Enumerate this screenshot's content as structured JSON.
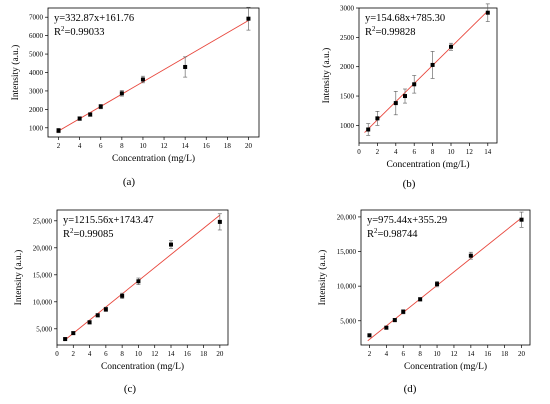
{
  "chart_data": [
    {
      "type": "scatter",
      "panel_label": "(a)",
      "equation": "y=332.87x+161.76",
      "r2_prefix": "R",
      "r2_sup": "2",
      "r2_value": "=0.99033",
      "xlabel": "Concentration (mg/L)",
      "ylabel": "Intensity (a.u.)",
      "xlim": [
        1,
        21
      ],
      "ylim": [
        500,
        7500
      ],
      "xticks": [
        2,
        4,
        6,
        8,
        10,
        12,
        14,
        16,
        18,
        20
      ],
      "yticks": [
        1000,
        2000,
        3000,
        4000,
        5000,
        6000,
        7000
      ],
      "ytick_labels": [
        "1000",
        "2000",
        "3000",
        "4000",
        "5000",
        "6000",
        "7000"
      ],
      "fit": {
        "slope": 332.87,
        "intercept": 161.76
      },
      "points": [
        {
          "x": 2,
          "y": 850,
          "err": 120
        },
        {
          "x": 4,
          "y": 1500,
          "err": 100
        },
        {
          "x": 5,
          "y": 1720,
          "err": 100
        },
        {
          "x": 6,
          "y": 2150,
          "err": 120
        },
        {
          "x": 8,
          "y": 2870,
          "err": 150
        },
        {
          "x": 10,
          "y": 3620,
          "err": 180
        },
        {
          "x": 14,
          "y": 4300,
          "err": 550
        },
        {
          "x": 20,
          "y": 6920,
          "err": 620
        }
      ]
    },
    {
      "type": "scatter",
      "panel_label": "(b)",
      "equation": "y=154.68x+785.30",
      "r2_prefix": "R",
      "r2_sup": "2",
      "r2_value": "=0.99828",
      "xlabel": "Concentration (mg/L)",
      "ylabel": "Intensity (a.u.)",
      "xlim": [
        0,
        15
      ],
      "ylim": [
        700,
        3000
      ],
      "xticks": [
        0,
        2,
        4,
        6,
        8,
        10,
        12,
        14
      ],
      "yticks": [
        1000,
        1500,
        2000,
        2500,
        3000
      ],
      "ytick_labels": [
        "1000",
        "1500",
        "2000",
        "2500",
        "3000"
      ],
      "fit": {
        "slope": 154.68,
        "intercept": 785.3
      },
      "points": [
        {
          "x": 1,
          "y": 930,
          "err": 100
        },
        {
          "x": 2,
          "y": 1120,
          "err": 120
        },
        {
          "x": 4,
          "y": 1380,
          "err": 200
        },
        {
          "x": 5,
          "y": 1500,
          "err": 120
        },
        {
          "x": 6,
          "y": 1700,
          "err": 150
        },
        {
          "x": 8,
          "y": 2030,
          "err": 230
        },
        {
          "x": 10,
          "y": 2340,
          "err": 60
        },
        {
          "x": 14,
          "y": 2920,
          "err": 150
        }
      ]
    },
    {
      "type": "scatter",
      "panel_label": "(c)",
      "equation": "y=1215.56x+1743.47",
      "r2_prefix": "R",
      "r2_sup": "2",
      "r2_value": "=0.99085",
      "xlabel": "Concentration (mg/L)",
      "ylabel": "Intensity (a.u.)",
      "xlim": [
        0,
        21
      ],
      "ylim": [
        2000,
        27000
      ],
      "xticks": [
        0,
        2,
        4,
        6,
        8,
        10,
        12,
        14,
        16,
        18,
        20
      ],
      "yticks": [
        5000,
        10000,
        15000,
        20000,
        25000
      ],
      "ytick_labels": [
        "5,000",
        "10,000",
        "15,000",
        "20,000",
        "25,000"
      ],
      "fit": {
        "slope": 1215.56,
        "intercept": 1743.47
      },
      "points": [
        {
          "x": 1,
          "y": 3100,
          "err": 200
        },
        {
          "x": 2,
          "y": 4200,
          "err": 250
        },
        {
          "x": 4,
          "y": 6200,
          "err": 300
        },
        {
          "x": 5,
          "y": 7500,
          "err": 300
        },
        {
          "x": 6,
          "y": 8600,
          "err": 400
        },
        {
          "x": 8,
          "y": 11100,
          "err": 500
        },
        {
          "x": 10,
          "y": 13800,
          "err": 600
        },
        {
          "x": 14,
          "y": 20600,
          "err": 700
        },
        {
          "x": 20,
          "y": 24800,
          "err": 1500
        }
      ]
    },
    {
      "type": "scatter",
      "panel_label": "(d)",
      "equation": "y=975.44x+355.29",
      "r2_prefix": "R",
      "r2_sup": "2",
      "r2_value": "=0.98744",
      "xlabel": "Concentration (mg/L)",
      "ylabel": "Intensity (a.u.)",
      "xlim": [
        1,
        21
      ],
      "ylim": [
        1500,
        21000
      ],
      "xticks": [
        2,
        4,
        6,
        8,
        10,
        12,
        14,
        16,
        18,
        20
      ],
      "yticks": [
        5000,
        10000,
        15000,
        20000
      ],
      "ytick_labels": [
        "5,000",
        "10,000",
        "15,000",
        "20,000"
      ],
      "fit": {
        "slope": 975.44,
        "intercept": 355.29
      },
      "points": [
        {
          "x": 2,
          "y": 2900,
          "err": 200
        },
        {
          "x": 4,
          "y": 4000,
          "err": 200
        },
        {
          "x": 5,
          "y": 5100,
          "err": 250
        },
        {
          "x": 6,
          "y": 6300,
          "err": 300
        },
        {
          "x": 8,
          "y": 8100,
          "err": 250
        },
        {
          "x": 10,
          "y": 10300,
          "err": 400
        },
        {
          "x": 14,
          "y": 14400,
          "err": 500
        },
        {
          "x": 20,
          "y": 19600,
          "err": 1100
        }
      ]
    }
  ]
}
